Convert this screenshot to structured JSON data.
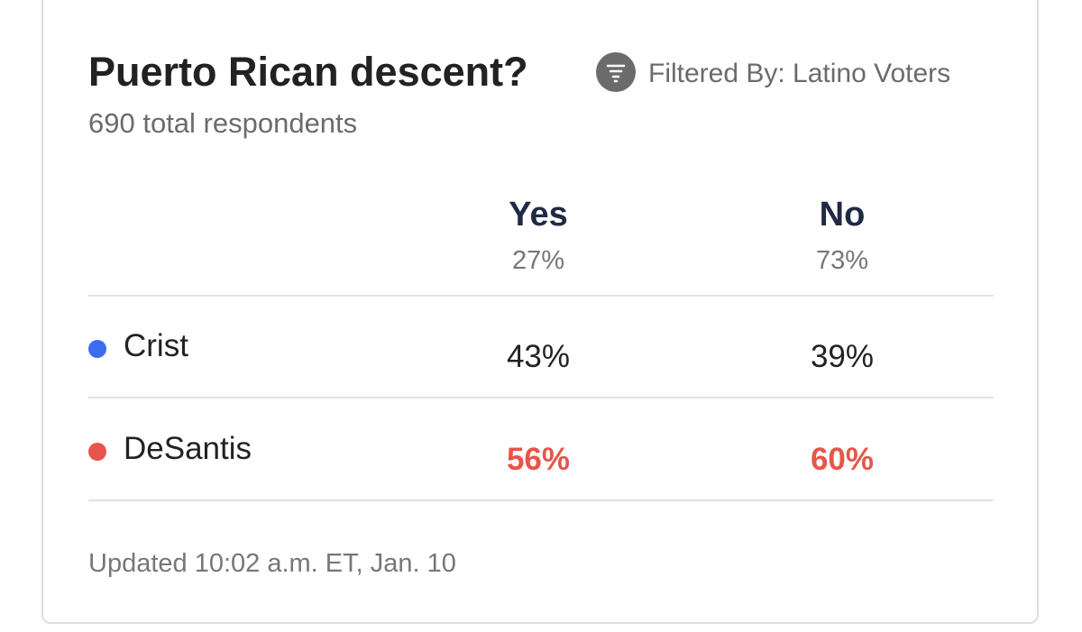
{
  "card": {
    "title": "Puerto Rican descent?",
    "filter": "Filtered By: Latino Voters",
    "respondents": "690 total respondents",
    "footer": "Updated 10:02 a.m. ET, Jan. 10"
  },
  "table": {
    "columns": [
      {
        "label": "Yes",
        "share": "27%"
      },
      {
        "label": "No",
        "share": "73%"
      }
    ],
    "rows": [
      {
        "candidate": "Crist",
        "color": "#3b6cf0",
        "cells": [
          "43%",
          "39%"
        ],
        "highlight": false
      },
      {
        "candidate": "DeSantis",
        "color": "#e8554a",
        "cells": [
          "56%",
          "60%"
        ],
        "highlight": true
      }
    ]
  }
}
